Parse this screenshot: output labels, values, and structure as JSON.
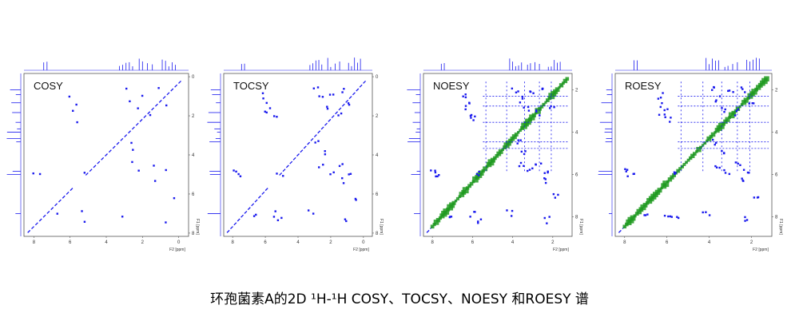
{
  "caption": "环孢菌素A的2D ¹H-¹H COSY、TOCSY、NOESY 和ROESY 谱",
  "colors": {
    "cross_peak": "#1a1aee",
    "negative_peak": "#1f9a1f",
    "frame": "#555555"
  },
  "panels": [
    {
      "title": "COSY",
      "f2_ticks": [
        "8",
        "6",
        "4",
        "2",
        "0"
      ],
      "f1_ticks": [
        "0",
        "2",
        "4",
        "6",
        "8"
      ],
      "f2_label": "F2 [ppm]",
      "f1_label": "F1 [ppm]",
      "green_diagonal": false
    },
    {
      "title": "TOCSY",
      "f2_ticks": [
        "8",
        "6",
        "4",
        "2",
        "0"
      ],
      "f1_ticks": [
        "0",
        "2",
        "4",
        "6",
        "8"
      ],
      "f2_label": "F2 [ppm]",
      "f1_label": "F1 [ppm]",
      "green_diagonal": false
    },
    {
      "title": "NOESY",
      "f2_ticks": [
        "8",
        "6",
        "4",
        "2"
      ],
      "f1_ticks": [
        "2",
        "4",
        "6",
        "8"
      ],
      "f2_label": "F2 [ppm]",
      "f1_label": "F1 [ppm]",
      "green_diagonal": true
    },
    {
      "title": "ROESY",
      "f2_ticks": [
        "8",
        "6",
        "4",
        "2"
      ],
      "f1_ticks": [
        "2",
        "4",
        "6",
        "8"
      ],
      "f2_label": "F2 [ppm]",
      "f1_label": "F1 [ppm]",
      "green_diagonal": true
    }
  ]
}
